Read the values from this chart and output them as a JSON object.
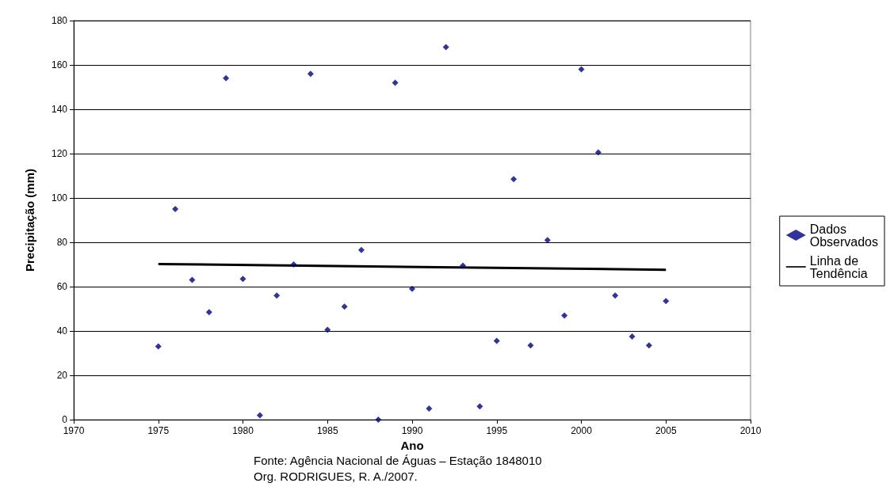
{
  "chart_data": {
    "type": "scatter",
    "xlabel": "Ano",
    "ylabel": "Precipitação (mm)",
    "annotations": [
      "Fonte: Agência Nacional de Águas – Estação 1848010",
      "Org. RODRIGUES, R. A./2007."
    ],
    "xlim": [
      1970,
      2010
    ],
    "xticks": [
      1970,
      1975,
      1980,
      1985,
      1990,
      1995,
      2000,
      2005,
      2010
    ],
    "ylim": [
      0,
      180
    ],
    "yticks": [
      0,
      20,
      40,
      60,
      80,
      100,
      120,
      140,
      160,
      180
    ],
    "grid": "y",
    "legend": "right",
    "series": [
      {
        "name": "Dados Observados",
        "marker": "diamond",
        "color": "#000080",
        "x": [
          1975,
          1976,
          1977,
          1978,
          1979,
          1980,
          1981,
          1982,
          1983,
          1984,
          1985,
          1986,
          1987,
          1988,
          1989,
          1990,
          1991,
          1992,
          1993,
          1994,
          1995,
          1996,
          1997,
          1998,
          1999,
          2000,
          2001,
          2002,
          2003,
          2004,
          2005
        ],
        "values": [
          33,
          95,
          63,
          48.5,
          154,
          63.5,
          2,
          56,
          70,
          156,
          40.5,
          51,
          76.5,
          0,
          152,
          59,
          5,
          168,
          69.5,
          6,
          35.5,
          108.5,
          33.5,
          81,
          47,
          158,
          120.5,
          56,
          37.5,
          33.5,
          53.5
        ]
      },
      {
        "name": "Linha de Tendência",
        "type": "line",
        "marker": "none",
        "line_style": "solid",
        "color": "#000000",
        "x": [
          1975,
          2005
        ],
        "values": [
          70.2,
          67.6
        ]
      }
    ]
  }
}
